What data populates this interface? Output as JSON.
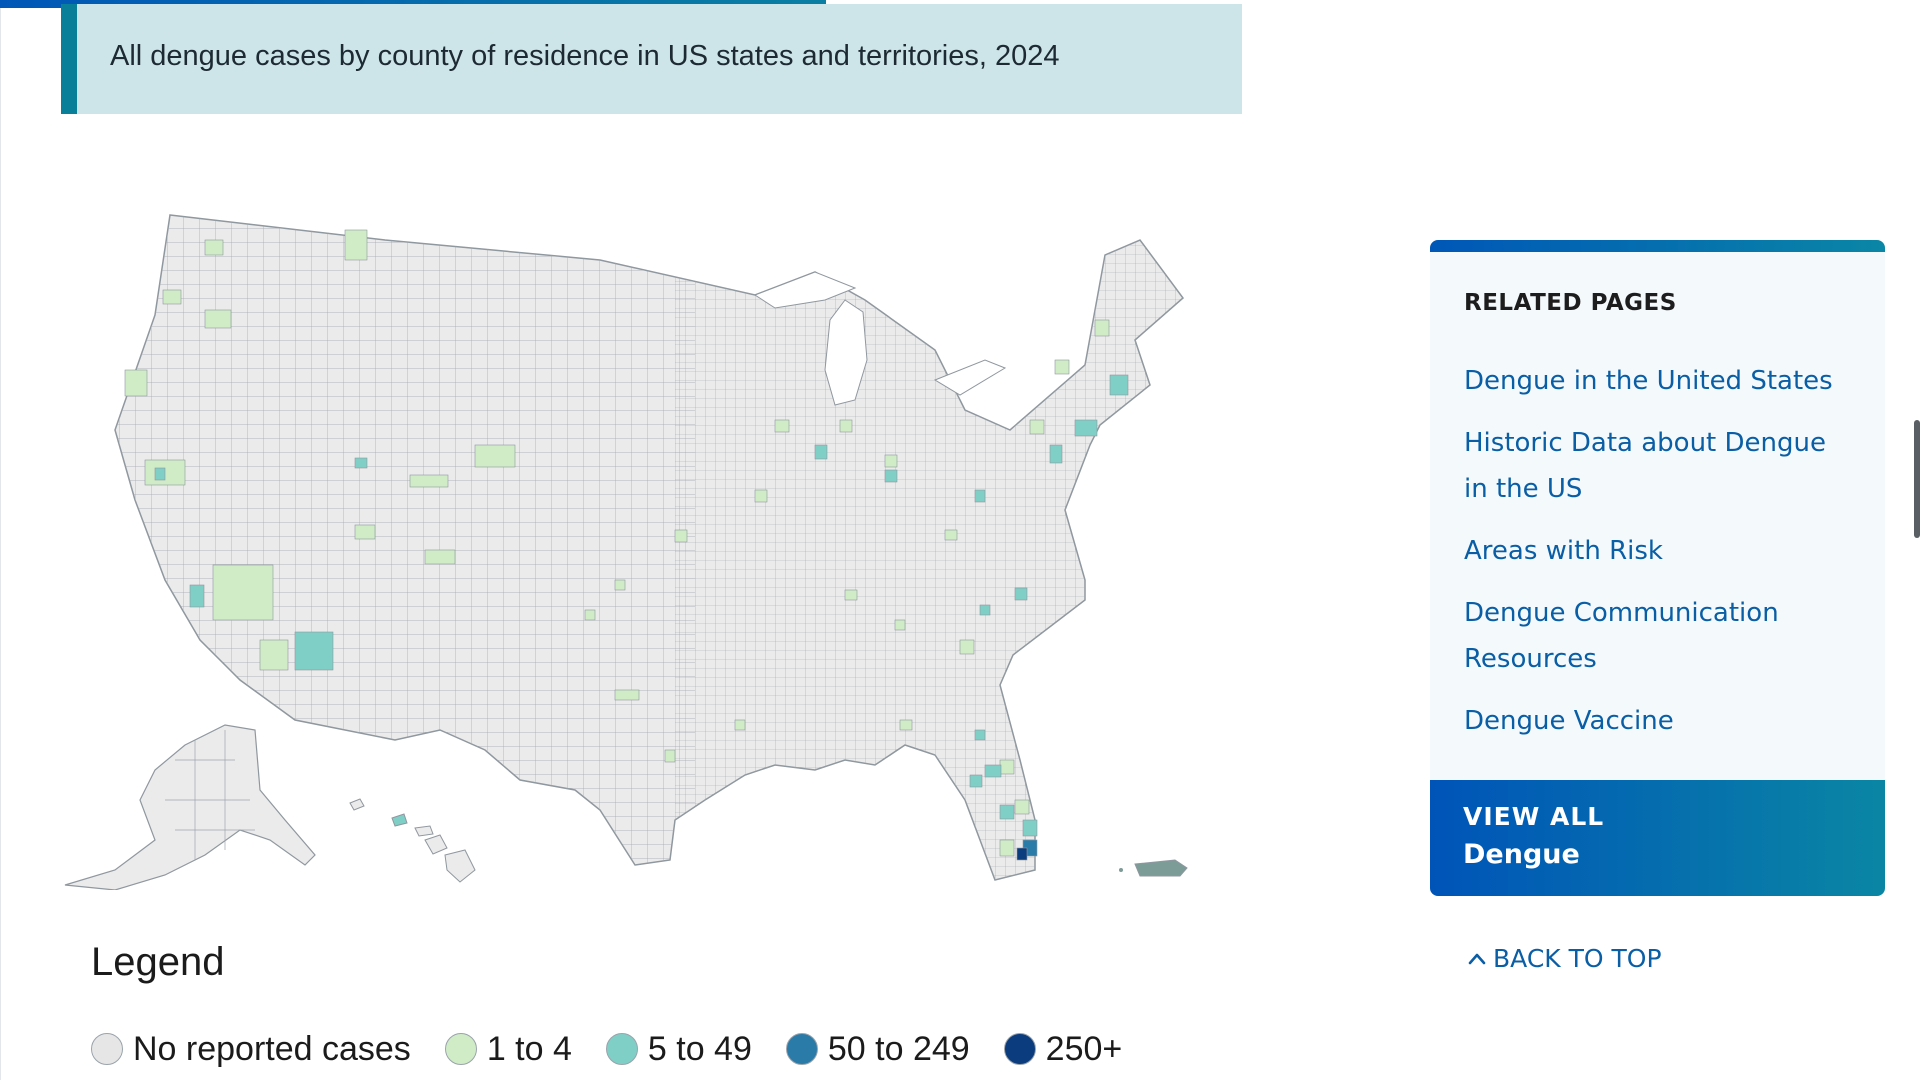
{
  "header": {
    "chart_title": "All dengue cases by county of residence in US states and territories, 2024"
  },
  "map": {
    "colors": {
      "none": "#ebebeb",
      "low": "#cfecc7",
      "mid": "#7fcfc7",
      "high": "#2b7ba9",
      "very_high": "#0b3c7d",
      "border": "#9ea5ad"
    }
  },
  "legend": {
    "title": "Legend",
    "items": [
      {
        "label": "No reported cases",
        "color": "#e6e6e6"
      },
      {
        "label": "1 to 4",
        "color": "#cfecc7"
      },
      {
        "label": "5 to 49",
        "color": "#7fcfc7"
      },
      {
        "label": "50 to 249",
        "color": "#2b7ba9"
      },
      {
        "label": "250+",
        "color": "#0b3c7d"
      }
    ]
  },
  "related_pages": {
    "heading": "RELATED PAGES",
    "links": [
      "Dengue in the United States",
      "Historic Data about Dengue in the US",
      "Areas with Risk",
      "Dengue Communication Resources",
      "Dengue Vaccine"
    ],
    "view_all_line1": "VIEW ALL",
    "view_all_line2": "Dengue"
  },
  "back_to_top": "BACK TO TOP"
}
